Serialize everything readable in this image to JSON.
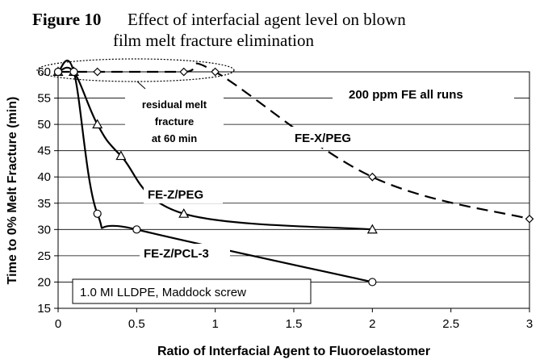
{
  "chart_data": {
    "type": "line",
    "title_number": "Figure 10",
    "title_line1": "Effect of interfacial agent level on blown",
    "title_line2": "film melt fracture elimination",
    "xlabel": "Ratio of Interfacial Agent to Fluoroelastomer",
    "ylabel": "Time to 0% Melt Fracture (min)",
    "xlim": [
      0,
      3
    ],
    "ylim": [
      15,
      60
    ],
    "xticks": [
      "0",
      "0.5",
      "1",
      "1.5",
      "2",
      "2.5",
      "3"
    ],
    "yticks": [
      "15",
      "20",
      "25",
      "30",
      "35",
      "40",
      "45",
      "50",
      "55",
      "60"
    ],
    "series": [
      {
        "name": "FE-X/PEG",
        "line": "dashed",
        "marker": "diamond",
        "x": [
          0,
          0.25,
          0.8,
          1,
          2,
          3
        ],
        "y": [
          60,
          60,
          60,
          60,
          40,
          32
        ]
      },
      {
        "name": "FE-Z/PEG",
        "line": "solid",
        "marker": "triangle",
        "x": [
          0,
          0.1,
          0.25,
          0.4,
          0.8,
          2
        ],
        "y": [
          60,
          60,
          50,
          44,
          33,
          30
        ]
      },
      {
        "name": "FE-Z/PCL-3",
        "line": "solid",
        "marker": "circle",
        "x": [
          0,
          0.1,
          0.25,
          0.5,
          2
        ],
        "y": [
          60,
          60,
          33,
          30,
          20
        ]
      }
    ],
    "annotations": {
      "ellipse_note": [
        "residual melt",
        "fracture",
        "at 60 min"
      ],
      "top_right": "200 ppm FE all runs",
      "bottom_box": "1.0 MI LLDPE, Maddock screw"
    },
    "grid": "horizontal",
    "legend": "none"
  }
}
